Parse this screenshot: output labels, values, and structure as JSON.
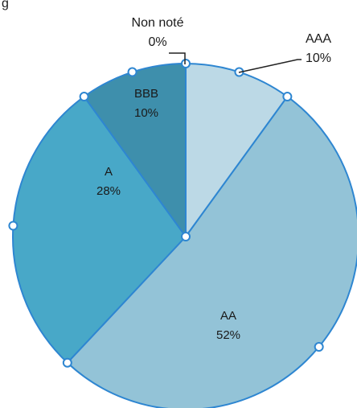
{
  "title_fragment": "g",
  "chart_data": {
    "type": "pie",
    "slices": [
      {
        "name": "AAA",
        "value": 10,
        "label": "10%",
        "color": "#bcd9e6"
      },
      {
        "name": "AA",
        "value": 52,
        "label": "52%",
        "color": "#93c3d7"
      },
      {
        "name": "A",
        "value": 28,
        "label": "28%",
        "color": "#48a8c8"
      },
      {
        "name": "BBB",
        "value": 10,
        "label": "10%",
        "color": "#3e8fac"
      },
      {
        "name": "Non noté",
        "value": 0,
        "label": "0%",
        "color": "#2f7891"
      }
    ],
    "edge_color": "#2e86d1",
    "legend": "none"
  }
}
